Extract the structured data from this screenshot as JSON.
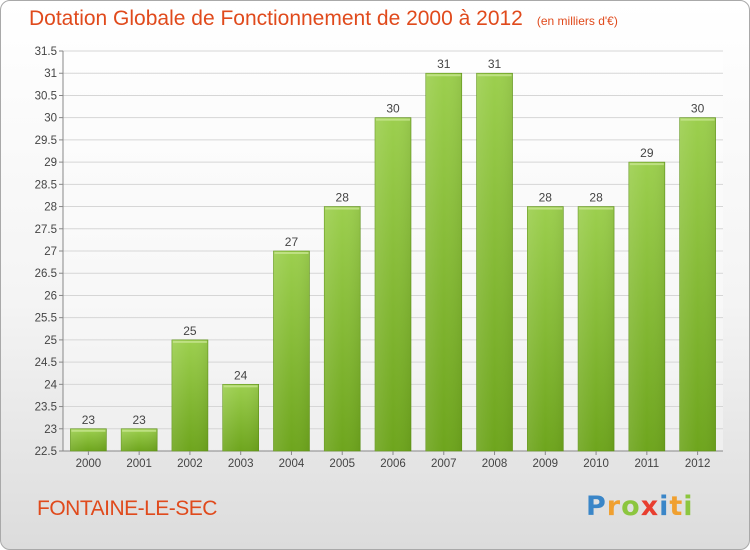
{
  "title": "Dotation Globale de Fonctionnement de 2000 à 2012",
  "subtitle": "(en milliers d'€)",
  "commune": "FONTAINE-LE-SEC",
  "logo_text": "Proxiti",
  "colors": {
    "title": "#e04a1c",
    "bar_light": "#9ccf4e",
    "bar_dark": "#6ea51d",
    "grid": "#d6d6d6"
  },
  "chart_data": {
    "type": "bar",
    "title": "Dotation Globale de Fonctionnement de 2000 à 2012",
    "subtitle": "(en milliers d'€)",
    "xlabel": "",
    "ylabel": "",
    "categories": [
      "2000",
      "2001",
      "2002",
      "2003",
      "2004",
      "2005",
      "2006",
      "2007",
      "2008",
      "2009",
      "2010",
      "2011",
      "2012"
    ],
    "values": [
      23,
      23,
      25,
      24,
      27,
      28,
      30,
      31,
      31,
      28,
      28,
      29,
      30
    ],
    "value_labels": [
      "23",
      "23",
      "25",
      "24",
      "27",
      "28",
      "30",
      "31",
      "31",
      "28",
      "28",
      "29",
      "30"
    ],
    "ylim": [
      22.5,
      31.5
    ],
    "yticks": [
      22.5,
      23,
      23.5,
      24,
      24.5,
      25,
      25.5,
      26,
      26.5,
      27,
      27.5,
      28,
      28.5,
      29,
      29.5,
      30,
      30.5,
      31,
      31.5
    ],
    "ytick_labels": [
      "22.5",
      "23",
      "23.5",
      "24",
      "24.5",
      "25",
      "25.5",
      "26",
      "26.5",
      "27",
      "27.5",
      "28",
      "28.5",
      "29",
      "29.5",
      "30",
      "30.5",
      "31",
      "31.5"
    ],
    "grid": true,
    "legend": "none"
  }
}
